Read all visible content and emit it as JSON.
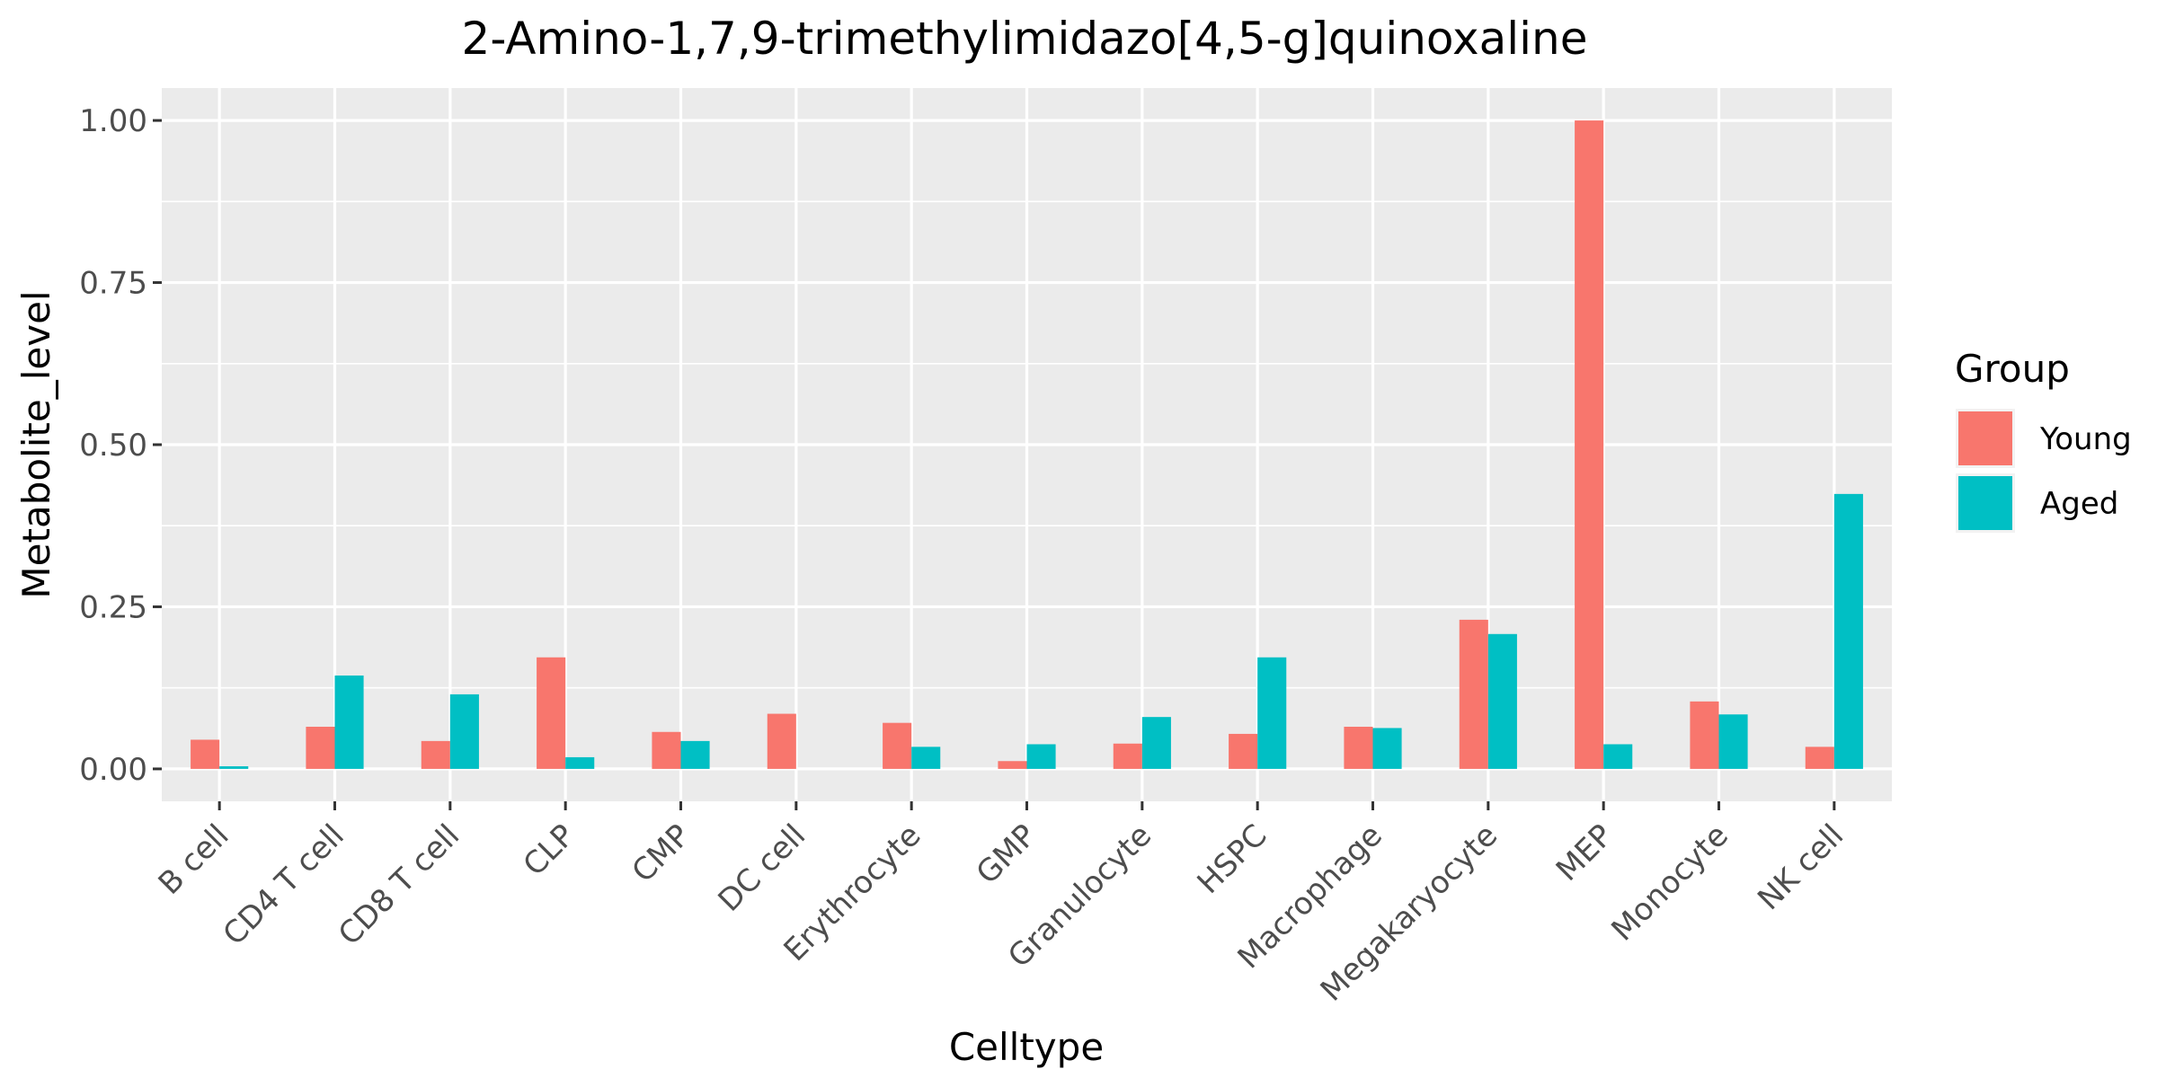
{
  "chart_data": {
    "type": "bar",
    "title": "2-Amino-1,7,9-trimethylimidazo[4,5-g]quinoxaline",
    "xlabel": "Celltype",
    "ylabel": "Metabolite_level",
    "ylim": [
      -0.05,
      1.05
    ],
    "yticks": [
      0.0,
      0.25,
      0.5,
      0.75,
      1.0
    ],
    "ytick_labels": [
      "0.00",
      "0.25",
      "0.50",
      "0.75",
      "1.00"
    ],
    "grid": true,
    "legend_title": "Group",
    "legend_position": "right",
    "categories": [
      "B cell",
      "CD4 T cell",
      "CD8 T cell",
      "CLP",
      "CMP",
      "DC cell",
      "Erythrocyte",
      "GMP",
      "Granulocyte",
      "HSPC",
      "Macrophage",
      "Megakaryocyte",
      "MEP",
      "Monocyte",
      "NK cell"
    ],
    "series": [
      {
        "name": "Young",
        "color": "#F8766D",
        "values": [
          0.045,
          0.065,
          0.043,
          0.172,
          0.057,
          0.085,
          0.071,
          0.012,
          0.039,
          0.054,
          0.065,
          0.23,
          1.0,
          0.104,
          0.034
        ]
      },
      {
        "name": "Aged",
        "color": "#00BFC4",
        "values": [
          0.004,
          0.144,
          0.115,
          0.018,
          0.043,
          0.0,
          0.034,
          0.038,
          0.08,
          0.172,
          0.063,
          0.208,
          0.038,
          0.084,
          0.424
        ]
      }
    ]
  }
}
